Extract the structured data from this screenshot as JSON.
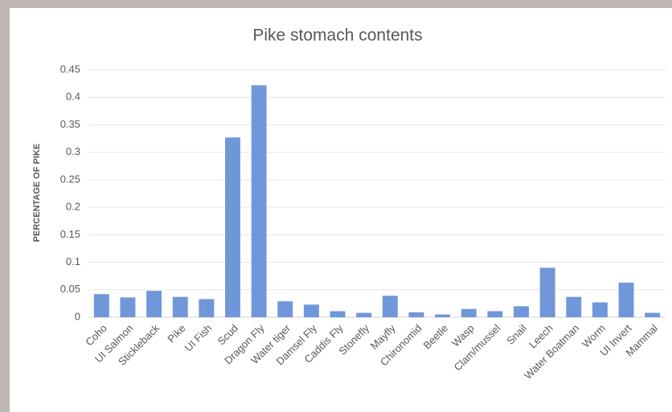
{
  "chart_data": {
    "type": "bar",
    "title": "Pike stomach contents",
    "y_label": "PERCENTAGE OF PIKE",
    "categories": [
      "Coho",
      "UI Salmon",
      "Stickleback",
      "Pike",
      "UI Fish",
      "Scud",
      "Dragon Fly",
      "Water tiger",
      "Damsel Fly",
      "Caddis Fly",
      "Stonefly",
      "Mayfly",
      "Chironomid",
      "Beetle",
      "Wasp",
      "Clam/mussel",
      "Snail",
      "Leech",
      "Water Boatman",
      "Worm",
      "UI Invert",
      "Mammal"
    ],
    "values": [
      0.042,
      0.036,
      0.048,
      0.037,
      0.033,
      0.327,
      0.422,
      0.029,
      0.023,
      0.011,
      0.008,
      0.039,
      0.009,
      0.005,
      0.015,
      0.011,
      0.02,
      0.09,
      0.037,
      0.027,
      0.063,
      0.008
    ],
    "color": "#7097d9",
    "ylim": [
      0,
      0.45
    ],
    "yticks": [
      0,
      0.05,
      0.1,
      0.15,
      0.2,
      0.25,
      0.3,
      0.35,
      0.4,
      0.45
    ],
    "grid": true
  }
}
